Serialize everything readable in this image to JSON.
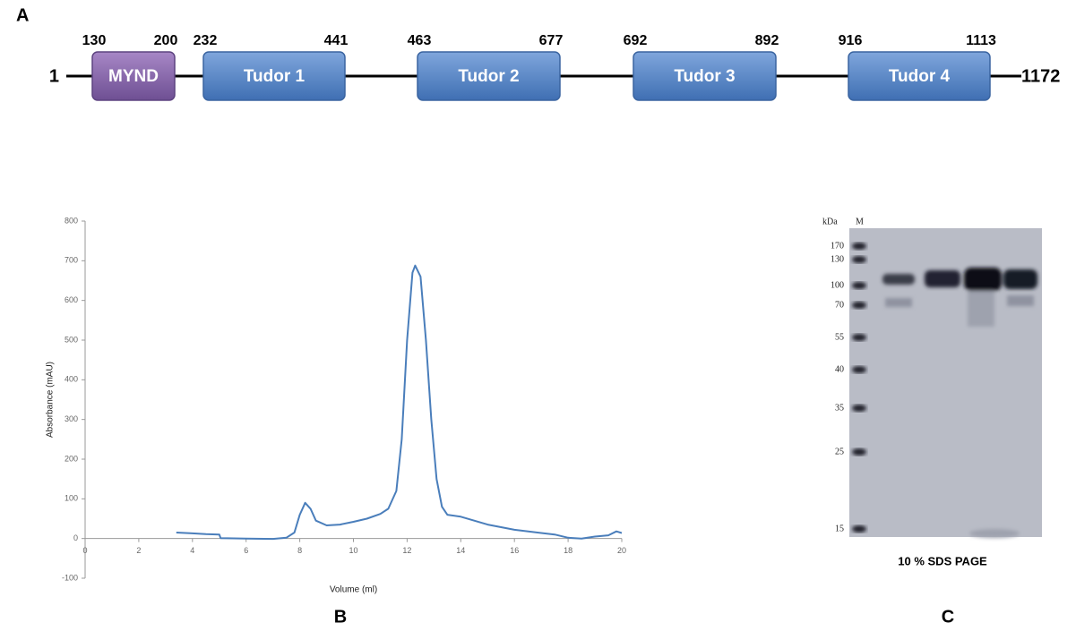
{
  "panel_a": {
    "label": "A",
    "start": 1,
    "end": 1172,
    "domains": [
      {
        "name": "MYND",
        "start": 130,
        "end": 200
      },
      {
        "name": "Tudor 1",
        "start": 232,
        "end": 441
      },
      {
        "name": "Tudor 2",
        "start": 463,
        "end": 677
      },
      {
        "name": "Tudor 3",
        "start": 692,
        "end": 892
      },
      {
        "name": "Tudor 4",
        "start": 916,
        "end": 1113
      }
    ]
  },
  "chart_data": {
    "type": "line",
    "panel_label": "B",
    "x_label": "Volume (ml)",
    "y_label": "Absorbance (mAU)",
    "xlim": [
      0,
      20
    ],
    "ylim": [
      -100,
      800
    ],
    "xticks": [
      0,
      2,
      4,
      6,
      8,
      10,
      12,
      14,
      16,
      18,
      20
    ],
    "yticks": [
      -100,
      0,
      100,
      200,
      300,
      400,
      500,
      600,
      700,
      800
    ],
    "color": "#4a7ebb",
    "x": [
      3.4,
      4,
      4.5,
      5,
      5.05,
      6,
      7,
      7.5,
      7.8,
      8.0,
      8.2,
      8.4,
      8.6,
      9,
      9.5,
      10,
      10.5,
      11,
      11.3,
      11.6,
      11.8,
      12,
      12.2,
      12.3,
      12.5,
      12.7,
      12.9,
      13.1,
      13.3,
      13.5,
      14,
      14.5,
      15,
      16,
      17,
      17.5,
      18,
      18.5,
      19,
      19.5,
      19.8,
      20
    ],
    "values": [
      15,
      13,
      11,
      10,
      1,
      0,
      -1,
      2,
      15,
      60,
      90,
      75,
      45,
      33,
      35,
      42,
      50,
      62,
      75,
      120,
      250,
      500,
      670,
      688,
      660,
      500,
      300,
      150,
      80,
      60,
      55,
      45,
      35,
      22,
      14,
      10,
      2,
      0,
      5,
      8,
      18,
      14
    ]
  },
  "panel_c": {
    "label": "C",
    "units": "kDa",
    "lane": "M",
    "markers": [
      170,
      130,
      100,
      70,
      55,
      40,
      35,
      25,
      15
    ],
    "caption": "10 % SDS PAGE"
  }
}
